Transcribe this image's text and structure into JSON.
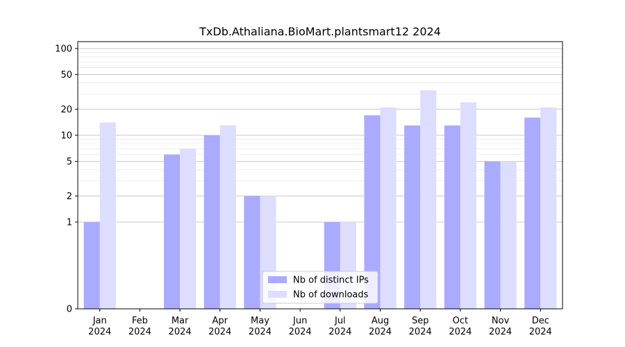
{
  "chart_data": {
    "type": "bar",
    "title": "TxDb.Athaliana.BioMart.plantsmart12 2024",
    "xlabel": "",
    "ylabel": "",
    "y_scale": "symlog",
    "ylim": [
      0,
      120
    ],
    "y_ticks": [
      0,
      1,
      2,
      5,
      10,
      20,
      50,
      100
    ],
    "y_tick_labels": [
      "0",
      "1",
      "2",
      "5",
      "10",
      "20",
      "50",
      "100"
    ],
    "categories": [
      "Jan\n2024",
      "Feb\n2024",
      "Mar\n2024",
      "Apr\n2024",
      "May\n2024",
      "Jun\n2024",
      "Jul\n2024",
      "Aug\n2024",
      "Sep\n2024",
      "Oct\n2024",
      "Nov\n2024",
      "Dec\n2024"
    ],
    "series": [
      {
        "name": "Nb of distinct IPs",
        "color": "#aaaaff",
        "values": [
          1,
          0,
          6,
          10,
          2,
          0,
          1,
          17,
          13,
          13,
          5,
          16
        ]
      },
      {
        "name": "Nb of downloads",
        "color": "#ddddff",
        "values": [
          14,
          0,
          7,
          13,
          2,
          0,
          1,
          21,
          33,
          24,
          5,
          21
        ]
      }
    ],
    "grid": true,
    "legend_position": "lower-center"
  }
}
